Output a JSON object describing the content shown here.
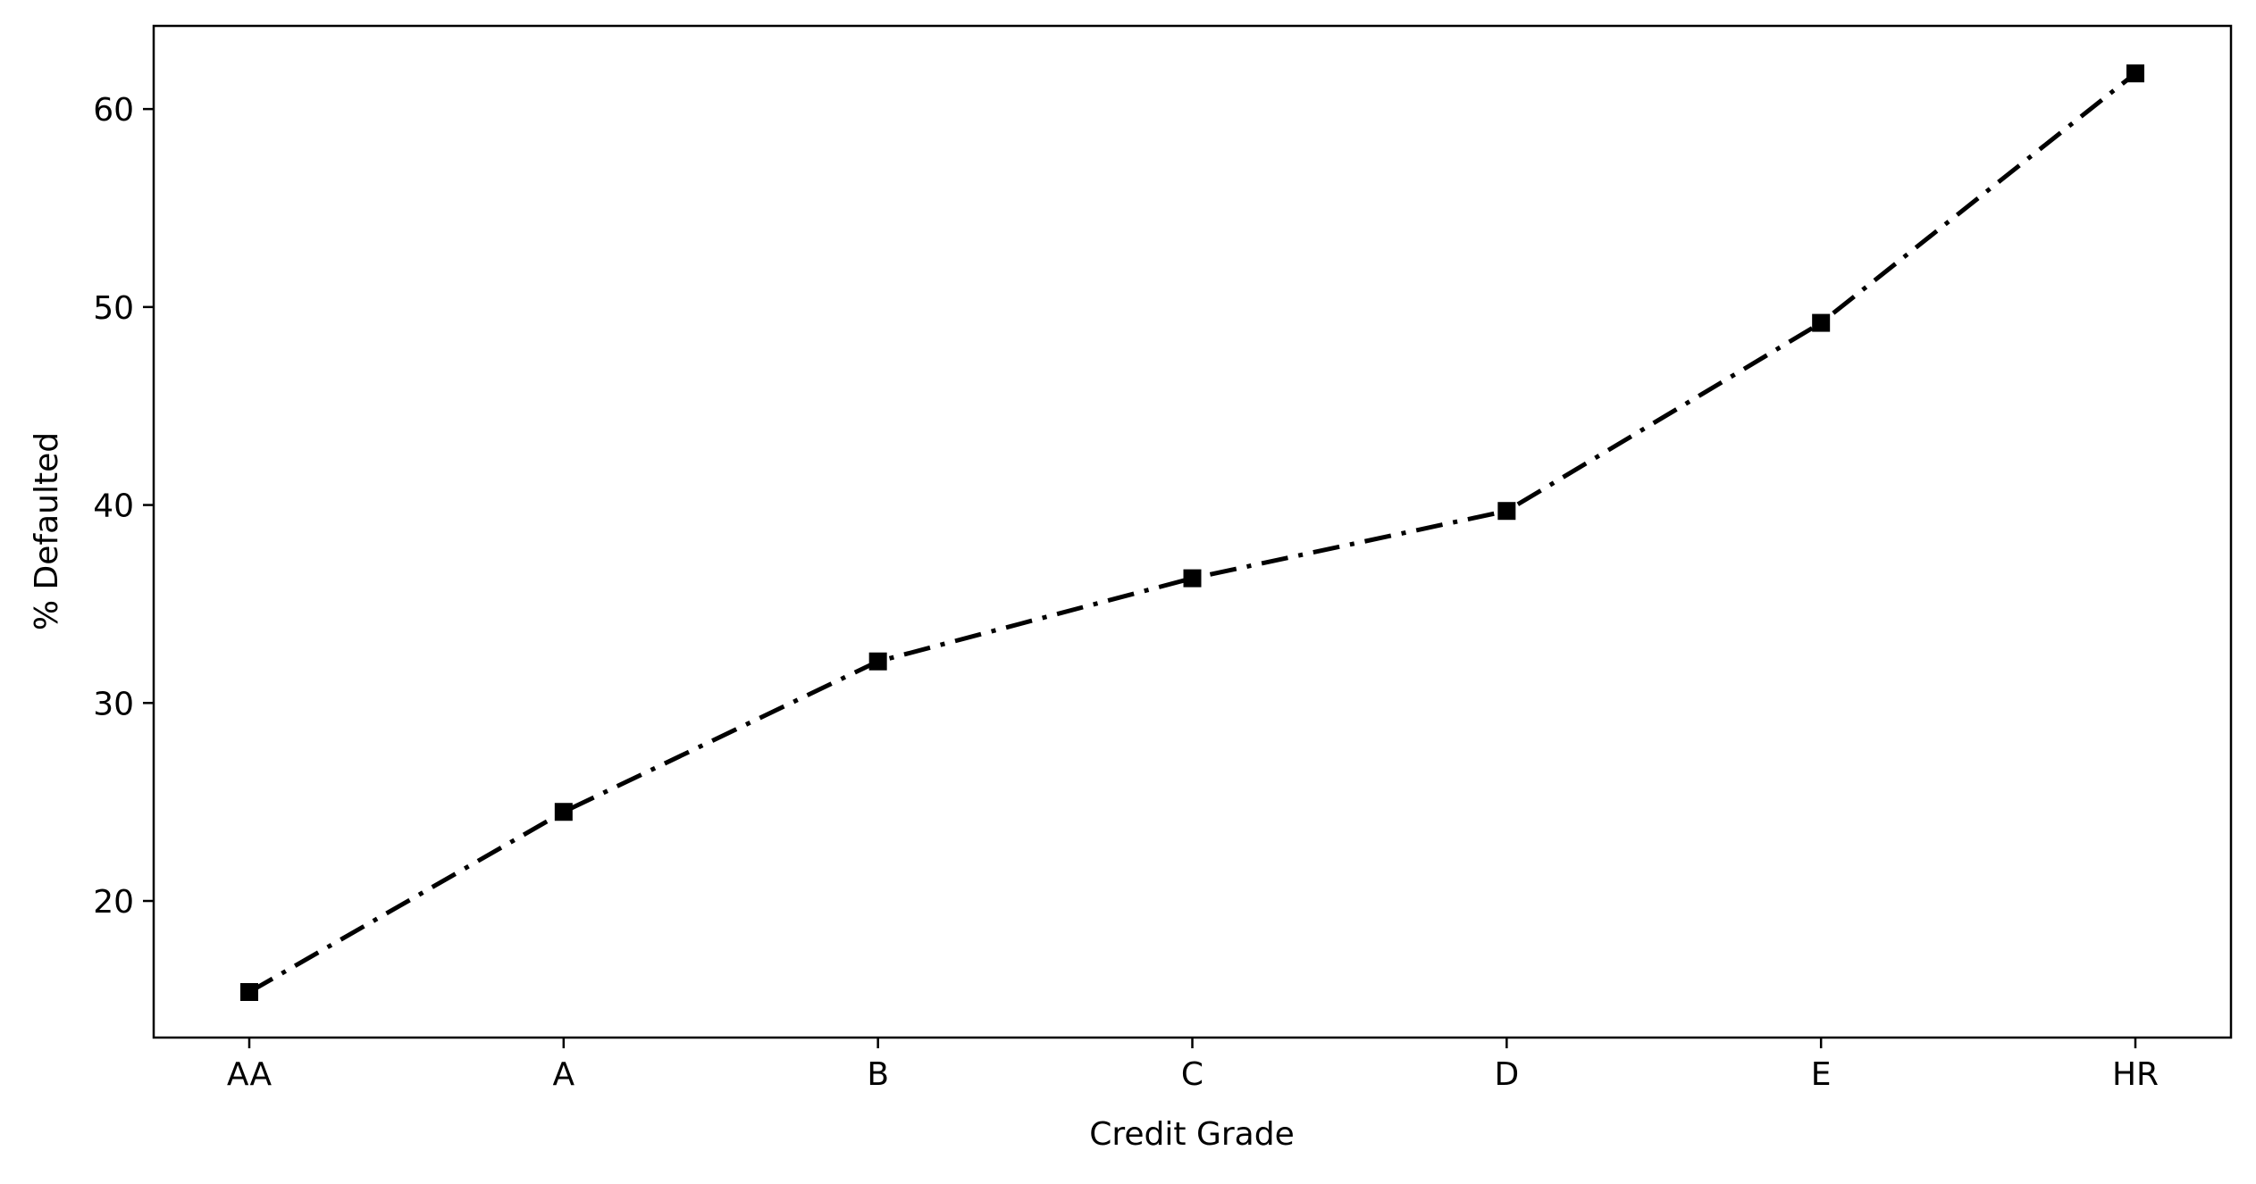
{
  "chart_data": {
    "type": "line",
    "title": "",
    "xlabel": "Credit Grade",
    "ylabel": "% Defaulted",
    "categories": [
      "AA",
      "A",
      "B",
      "C",
      "D",
      "E",
      "HR"
    ],
    "series": [
      {
        "values": [
          15.4,
          24.5,
          32.1,
          36.3,
          39.7,
          49.2,
          61.8
        ],
        "color": "#000000",
        "line_style": "dash-dot",
        "marker": "square"
      }
    ],
    "yticks": [
      20,
      30,
      40,
      50,
      60
    ],
    "ylim": [
      13.1,
      64.2
    ],
    "grid": false,
    "legend": "none"
  }
}
